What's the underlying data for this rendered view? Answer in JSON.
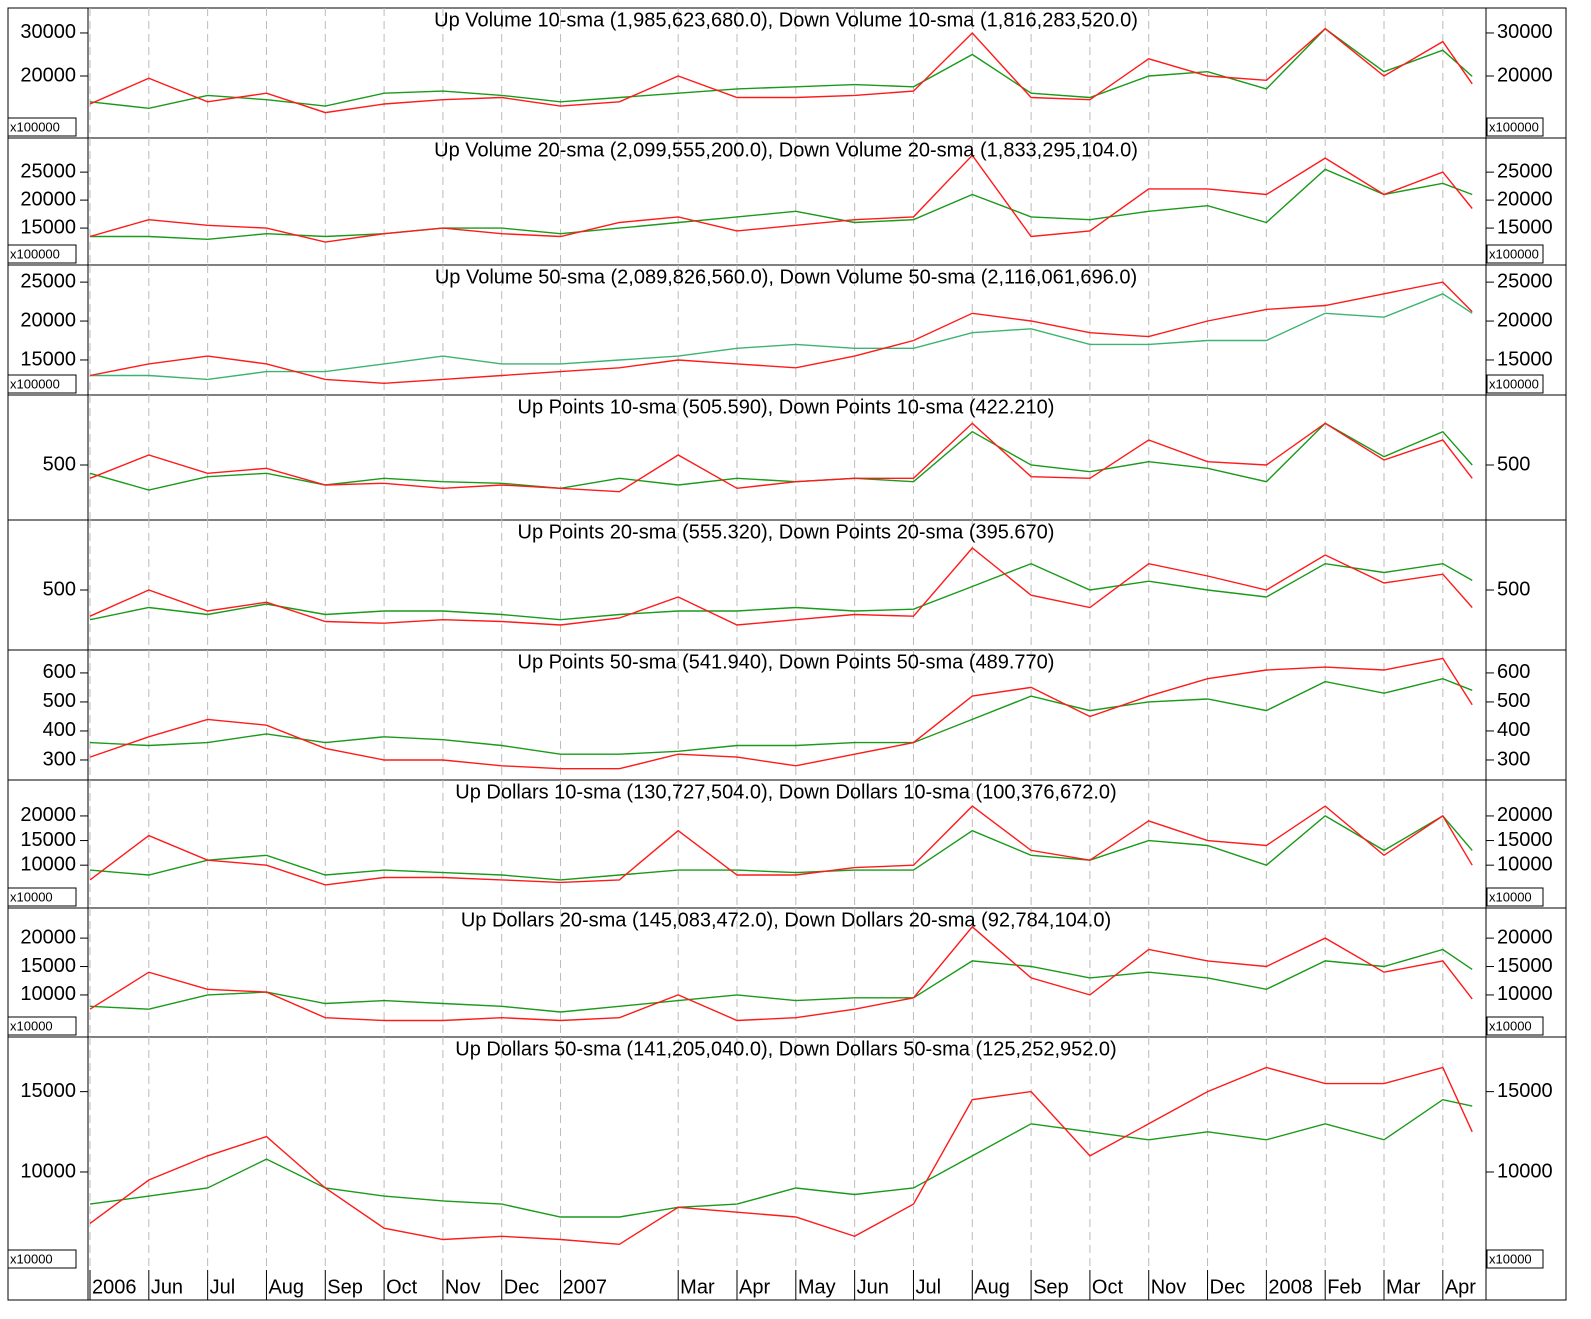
{
  "chart_data": [
    {
      "type": "line",
      "title": "Up Volume 10-sma (1,985,623,680.0), Down Volume 10-sma (1,816,283,520.0)",
      "scale_label": "x100000",
      "x": [
        0,
        1,
        2,
        3,
        4,
        5,
        6,
        7,
        8,
        9,
        10,
        11,
        12,
        13,
        14,
        15,
        16,
        17,
        18,
        19,
        20,
        21,
        22,
        23,
        23.5
      ],
      "xlim": [
        0,
        23.7
      ],
      "ylim": [
        5600,
        35800
      ],
      "yticks": [
        20000,
        30000
      ],
      "xgrid": true,
      "series": [
        {
          "color": "#1a9a1a",
          "values": [
            14000,
            12500,
            15500,
            14500,
            13000,
            16000,
            16500,
            15500,
            14000,
            15000,
            16000,
            17000,
            17500,
            18000,
            17500,
            25000,
            16000,
            15000,
            20000,
            21000,
            17000,
            31000,
            21000,
            26000,
            19900
          ]
        },
        {
          "color": "#ff1a1a",
          "values": [
            13500,
            19500,
            14000,
            16000,
            11500,
            13500,
            14500,
            15000,
            13000,
            14000,
            20000,
            15000,
            15000,
            15500,
            16500,
            30000,
            15000,
            14500,
            24000,
            20000,
            19000,
            31000,
            20000,
            28000,
            18200
          ]
        }
      ]
    },
    {
      "type": "line",
      "title": "Up Volume 20-sma (2,099,555,200.0), Down Volume 20-sma (1,833,295,104.0)",
      "scale_label": "x100000",
      "x": [
        0,
        1,
        2,
        3,
        4,
        5,
        6,
        7,
        8,
        9,
        10,
        11,
        12,
        13,
        14,
        15,
        16,
        17,
        18,
        19,
        20,
        21,
        22,
        23,
        23.5
      ],
      "xlim": [
        0,
        23.7
      ],
      "ylim": [
        8400,
        31100
      ],
      "yticks": [
        15000,
        20000,
        25000
      ],
      "xgrid": true,
      "series": [
        {
          "color": "#1a9a1a",
          "values": [
            13500,
            13500,
            13000,
            14000,
            13500,
            14000,
            15000,
            15000,
            14000,
            15000,
            16000,
            17000,
            18000,
            16000,
            16500,
            21000,
            17000,
            16500,
            18000,
            19000,
            16000,
            25500,
            21000,
            23000,
            21000
          ]
        },
        {
          "color": "#ff1a1a",
          "values": [
            13500,
            16500,
            15500,
            15000,
            12500,
            14000,
            15000,
            14000,
            13500,
            16000,
            17000,
            14500,
            15500,
            16500,
            17000,
            28000,
            13500,
            14500,
            22000,
            22000,
            21000,
            27500,
            21000,
            25000,
            18500
          ]
        }
      ]
    },
    {
      "type": "line",
      "title": "Up Volume 50-sma (2,089,826,560.0), Down Volume 50-sma (2,116,061,696.0)",
      "scale_label": "x100000",
      "x": [
        0,
        1,
        2,
        3,
        4,
        5,
        6,
        7,
        8,
        9,
        10,
        11,
        12,
        13,
        14,
        15,
        16,
        17,
        18,
        19,
        20,
        21,
        22,
        23,
        23.5
      ],
      "xlim": [
        0,
        23.7
      ],
      "ylim": [
        10500,
        27200
      ],
      "yticks": [
        15000,
        20000,
        25000
      ],
      "xgrid": true,
      "series": [
        {
          "color": "#3cb371",
          "values": [
            13000,
            13000,
            12500,
            13500,
            13500,
            14500,
            15500,
            14500,
            14500,
            15000,
            15500,
            16500,
            17000,
            16500,
            16500,
            18500,
            19000,
            17000,
            17000,
            17500,
            17500,
            21000,
            20500,
            23500,
            21000
          ]
        },
        {
          "color": "#ff1a1a",
          "values": [
            13000,
            14500,
            15500,
            14500,
            12500,
            12000,
            12500,
            13000,
            13500,
            14000,
            15000,
            14500,
            14000,
            15500,
            17500,
            21000,
            20000,
            18500,
            18000,
            20000,
            21500,
            22000,
            23500,
            25000,
            21200
          ]
        }
      ]
    },
    {
      "type": "line",
      "title": "Up Points 10-sma (505.590), Down Points 10-sma (422.210)",
      "x": [
        0,
        1,
        2,
        3,
        4,
        5,
        6,
        7,
        8,
        9,
        10,
        11,
        12,
        13,
        14,
        15,
        16,
        17,
        18,
        19,
        20,
        21,
        22,
        23,
        23.5
      ],
      "xlim": [
        0,
        23.7
      ],
      "ylim": [
        170,
        920
      ],
      "yticks": [
        500
      ],
      "xgrid": true,
      "series": [
        {
          "color": "#1a9a1a",
          "values": [
            450,
            350,
            430,
            450,
            380,
            420,
            400,
            390,
            360,
            420,
            380,
            420,
            400,
            420,
            400,
            700,
            500,
            460,
            520,
            480,
            400,
            750,
            550,
            700,
            500
          ]
        },
        {
          "color": "#ff1a1a",
          "values": [
            420,
            560,
            450,
            480,
            380,
            390,
            360,
            380,
            360,
            340,
            560,
            360,
            400,
            420,
            420,
            750,
            430,
            420,
            650,
            520,
            500,
            750,
            530,
            650,
            420
          ]
        }
      ]
    },
    {
      "type": "line",
      "title": "Up Points 20-sma (555.320), Down Points 20-sma (395.670)",
      "x": [
        0,
        1,
        2,
        3,
        4,
        5,
        6,
        7,
        8,
        9,
        10,
        11,
        12,
        13,
        14,
        15,
        16,
        17,
        18,
        19,
        20,
        21,
        22,
        23,
        23.5
      ],
      "xlim": [
        0,
        23.7
      ],
      "ylim": [
        157,
        900
      ],
      "yticks": [
        500
      ],
      "xgrid": true,
      "series": [
        {
          "color": "#1a9a1a",
          "values": [
            330,
            400,
            360,
            420,
            360,
            380,
            380,
            360,
            330,
            360,
            380,
            380,
            400,
            380,
            390,
            520,
            650,
            500,
            550,
            500,
            460,
            650,
            600,
            650,
            555
          ]
        },
        {
          "color": "#ff1a1a",
          "values": [
            350,
            500,
            380,
            430,
            320,
            310,
            330,
            320,
            300,
            340,
            460,
            300,
            330,
            360,
            350,
            740,
            470,
            400,
            650,
            580,
            500,
            700,
            540,
            590,
            400
          ]
        }
      ]
    },
    {
      "type": "line",
      "title": "Up Points 50-sma (541.940), Down Points 50-sma (489.770)",
      "x": [
        0,
        1,
        2,
        3,
        4,
        5,
        6,
        7,
        8,
        9,
        10,
        11,
        12,
        13,
        14,
        15,
        16,
        17,
        18,
        19,
        20,
        21,
        22,
        23,
        23.5
      ],
      "xlim": [
        0,
        23.7
      ],
      "ylim": [
        231,
        679
      ],
      "yticks": [
        300,
        400,
        500,
        600
      ],
      "xgrid": true,
      "series": [
        {
          "color": "#1a9a1a",
          "values": [
            360,
            350,
            360,
            390,
            360,
            380,
            370,
            350,
            320,
            320,
            330,
            350,
            350,
            360,
            360,
            440,
            520,
            470,
            500,
            510,
            470,
            570,
            530,
            580,
            540
          ]
        },
        {
          "color": "#ff1a1a",
          "values": [
            310,
            380,
            440,
            420,
            340,
            300,
            300,
            280,
            270,
            270,
            320,
            310,
            280,
            320,
            360,
            520,
            550,
            450,
            520,
            580,
            610,
            620,
            610,
            650,
            490
          ]
        }
      ]
    },
    {
      "type": "line",
      "title": "Up Dollars 10-sma (130,727,504.0), Down Dollars 10-sma (100,376,672.0)",
      "scale_label": "x10000",
      "x": [
        0,
        1,
        2,
        3,
        4,
        5,
        6,
        7,
        8,
        9,
        10,
        11,
        12,
        13,
        14,
        15,
        16,
        17,
        18,
        19,
        20,
        21,
        22,
        23,
        23.5
      ],
      "xlim": [
        0,
        23.7
      ],
      "ylim": [
        1300,
        27300
      ],
      "yticks": [
        10000,
        15000,
        20000
      ],
      "xgrid": true,
      "series": [
        {
          "color": "#1a9a1a",
          "values": [
            9000,
            8000,
            11000,
            12000,
            8000,
            9000,
            8500,
            8000,
            7000,
            8000,
            9000,
            9000,
            8500,
            9000,
            9000,
            17000,
            12000,
            11000,
            15000,
            14000,
            10000,
            20000,
            13000,
            20000,
            13000
          ]
        },
        {
          "color": "#ff1a1a",
          "values": [
            7000,
            16000,
            11000,
            10000,
            6000,
            7500,
            7500,
            7000,
            6500,
            7000,
            17000,
            8000,
            8000,
            9500,
            10000,
            22000,
            13000,
            11000,
            19000,
            15000,
            14000,
            22000,
            12000,
            20000,
            10000
          ]
        }
      ]
    },
    {
      "type": "line",
      "title": "Up Dollars 20-sma (145,083,472.0), Down Dollars 20-sma (92,784,104.0)",
      "scale_label": "x10000",
      "x": [
        0,
        1,
        2,
        3,
        4,
        5,
        6,
        7,
        8,
        9,
        10,
        11,
        12,
        13,
        14,
        15,
        16,
        17,
        18,
        19,
        20,
        21,
        22,
        23,
        23.5
      ],
      "xlim": [
        0,
        23.7
      ],
      "ylim": [
        2600,
        25300
      ],
      "yticks": [
        10000,
        15000,
        20000
      ],
      "xgrid": true,
      "series": [
        {
          "color": "#1a9a1a",
          "values": [
            8000,
            7500,
            10000,
            10500,
            8500,
            9000,
            8500,
            8000,
            7000,
            8000,
            9000,
            10000,
            9000,
            9500,
            9500,
            16000,
            15000,
            13000,
            14000,
            13000,
            11000,
            16000,
            15000,
            18000,
            14500
          ]
        },
        {
          "color": "#ff1a1a",
          "values": [
            7500,
            14000,
            11000,
            10500,
            6000,
            5500,
            5500,
            6000,
            5500,
            6000,
            10000,
            5500,
            6000,
            7500,
            9500,
            22000,
            13000,
            10000,
            18000,
            16000,
            15000,
            20000,
            14000,
            16000,
            9300
          ]
        }
      ]
    },
    {
      "type": "line",
      "title": "Up Dollars 50-sma (141,205,040.0), Down Dollars 50-sma (125,252,952.0)",
      "scale_label": "x10000",
      "x": [
        0,
        1,
        2,
        3,
        4,
        5,
        6,
        7,
        8,
        9,
        10,
        11,
        12,
        13,
        14,
        15,
        16,
        17,
        18,
        19,
        20,
        21,
        22,
        23,
        23.5
      ],
      "xlim": [
        0,
        23.7
      ],
      "ylim": [
        3900,
        18400
      ],
      "yticks": [
        10000,
        15000
      ],
      "xgrid": true,
      "xticks": [
        {
          "value": 0,
          "label": "2006"
        },
        {
          "value": 1,
          "label": "Jun"
        },
        {
          "value": 2,
          "label": "Jul"
        },
        {
          "value": 3,
          "label": "Aug"
        },
        {
          "value": 4,
          "label": "Sep"
        },
        {
          "value": 5,
          "label": "Oct"
        },
        {
          "value": 6,
          "label": "Nov"
        },
        {
          "value": 7,
          "label": "Dec"
        },
        {
          "value": 8,
          "label": "2007"
        },
        {
          "value": 10,
          "label": "Mar"
        },
        {
          "value": 11,
          "label": "Apr"
        },
        {
          "value": 12,
          "label": "May"
        },
        {
          "value": 13,
          "label": "Jun"
        },
        {
          "value": 14,
          "label": "Jul"
        },
        {
          "value": 15,
          "label": "Aug"
        },
        {
          "value": 16,
          "label": "Sep"
        },
        {
          "value": 17,
          "label": "Oct"
        },
        {
          "value": 18,
          "label": "Nov"
        },
        {
          "value": 19,
          "label": "Dec"
        },
        {
          "value": 20,
          "label": "2008"
        },
        {
          "value": 21,
          "label": "Feb"
        },
        {
          "value": 22,
          "label": "Mar"
        },
        {
          "value": 23,
          "label": "Apr"
        }
      ],
      "series": [
        {
          "color": "#1a9a1a",
          "values": [
            8000,
            8500,
            9000,
            10800,
            9000,
            8500,
            8200,
            8000,
            7200,
            7200,
            7800,
            8000,
            9000,
            8600,
            9000,
            11000,
            13000,
            12500,
            12000,
            12500,
            12000,
            13000,
            12000,
            14500,
            14100
          ]
        },
        {
          "color": "#ff1a1a",
          "values": [
            6800,
            9500,
            11000,
            12200,
            9000,
            6500,
            5800,
            6000,
            5800,
            5500,
            7800,
            7500,
            7200,
            6000,
            8000,
            14500,
            15000,
            11000,
            13000,
            15000,
            16500,
            15500,
            15500,
            16500,
            12500
          ]
        }
      ]
    }
  ]
}
